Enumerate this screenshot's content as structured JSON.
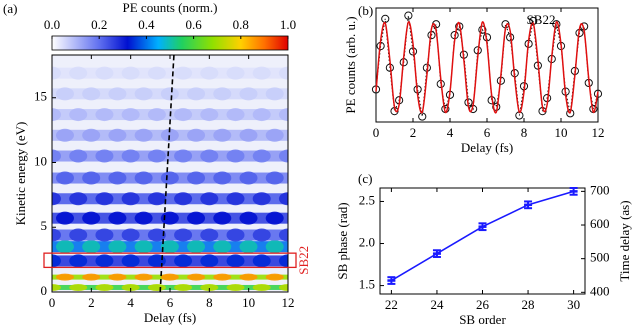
{
  "chart_data": [
    {
      "type": "heatmap",
      "label": "(a)",
      "xlabel": "Delay (fs)",
      "ylabel": "Kinetic energy (eV)",
      "xlim": [
        0,
        12
      ],
      "xticks": [
        0,
        2,
        4,
        6,
        8,
        10,
        12
      ],
      "ylim": [
        0,
        18.3
      ],
      "yticks": [
        0,
        5,
        10,
        15
      ],
      "colorbar": {
        "label": "PE counts (norm.)",
        "lim": [
          0,
          1
        ],
        "ticks": [
          {
            "value": 0,
            "label": "0.0"
          },
          {
            "value": 0.2,
            "label": "0.2"
          },
          {
            "value": 0.4,
            "label": "0.4"
          },
          {
            "value": 0.6,
            "label": "0.6"
          },
          {
            "value": 0.8,
            "label": "0.8"
          },
          {
            "value": 1,
            "label": "1.0"
          }
        ]
      },
      "dashed_line": {
        "x": [
          5.5,
          6.2
        ],
        "y": [
          0,
          18.3
        ]
      },
      "annotation": {
        "text": "SB22",
        "y_range": [
          1.9,
          3.0
        ],
        "color": "#e02020"
      }
    },
    {
      "type": "line",
      "label": "(b)",
      "title": "SB22",
      "xlabel": "Delay (fs)",
      "ylabel": "PE counts (arb. u.)",
      "xlim": [
        0,
        12
      ],
      "xticks": [
        0,
        2,
        4,
        6,
        8,
        10,
        12
      ],
      "ylim": [
        0,
        1.05
      ],
      "x": [
        0,
        0.25,
        0.5,
        0.75,
        1,
        1.25,
        1.5,
        1.75,
        2,
        2.25,
        2.5,
        2.75,
        3,
        3.25,
        3.5,
        3.75,
        4,
        4.25,
        4.5,
        4.75,
        5,
        5.25,
        5.5,
        5.75,
        6,
        6.25,
        6.5,
        6.75,
        7,
        7.25,
        7.5,
        7.75,
        8,
        8.25,
        8.5,
        8.75,
        9,
        9.25,
        9.5,
        9.75,
        10,
        10.25,
        10.5,
        10.75,
        11,
        11.25,
        11.5,
        11.75,
        12
      ],
      "series": [
        {
          "color": "#111111",
          "marker": "circle",
          "linestyle": "dotted",
          "values": [
            0.3,
            0.7,
            0.95,
            0.5,
            0.1,
            0.2,
            0.55,
            0.98,
            0.65,
            0.3,
            0.05,
            0.5,
            0.8,
            0.9,
            0.35,
            0.12,
            0.25,
            0.8,
            0.88,
            0.62,
            0.18,
            0.12,
            0.66,
            0.85,
            0.78,
            0.2,
            0.14,
            0.38,
            0.9,
            0.78,
            0.45,
            0.06,
            0.33,
            0.72,
            0.93,
            0.52,
            0.1,
            0.22,
            0.58,
            0.9,
            0.7,
            0.28,
            0.08,
            0.47,
            0.82,
            0.88,
            0.36,
            0.12,
            0.26
          ]
        },
        {
          "color": "#e01010",
          "linestyle": "solid",
          "values": [
            0.28,
            0.75,
            0.91,
            0.57,
            0.14,
            0.16,
            0.6,
            0.92,
            0.72,
            0.25,
            0.09,
            0.43,
            0.86,
            0.84,
            0.4,
            0.09,
            0.28,
            0.75,
            0.91,
            0.57,
            0.14,
            0.16,
            0.6,
            0.92,
            0.72,
            0.25,
            0.09,
            0.43,
            0.86,
            0.84,
            0.4,
            0.09,
            0.28,
            0.75,
            0.91,
            0.57,
            0.14,
            0.16,
            0.6,
            0.92,
            0.72,
            0.25,
            0.09,
            0.43,
            0.86,
            0.84,
            0.4,
            0.09,
            0.28
          ]
        }
      ]
    },
    {
      "type": "errorbar",
      "label": "(c)",
      "xlabel": "SB order",
      "ylabel": "SB phase (rad)",
      "y2label": "Time delay (as)",
      "x": [
        22,
        24,
        26,
        28,
        30
      ],
      "values": [
        1.56,
        1.88,
        2.2,
        2.46,
        2.62
      ],
      "errors": [
        0.04,
        0.04,
        0.04,
        0.04,
        0.04
      ],
      "color": "#1a1aff",
      "xlim": [
        21.5,
        30.5
      ],
      "xticks": [
        22,
        24,
        26,
        28,
        30
      ],
      "ylim": [
        1.4,
        2.66
      ],
      "yticks": [
        1.5,
        {
          "value": 2.0,
          "label": "2.0"
        },
        2.5
      ],
      "y2lim": [
        395,
        710
      ],
      "y2ticks": [
        400,
        500,
        600,
        700
      ]
    }
  ]
}
